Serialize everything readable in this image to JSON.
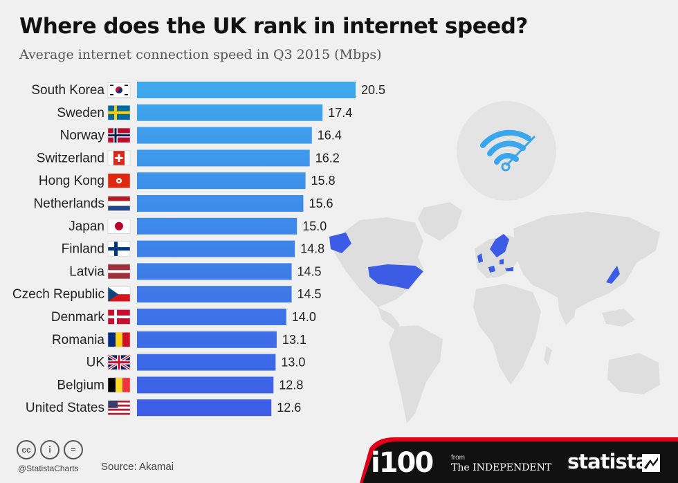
{
  "title": "Where does the UK rank in internet speed?",
  "subtitle": "Average internet connection speed in Q3 2015 (Mbps)",
  "chart_data": {
    "type": "bar",
    "orientation": "horizontal",
    "title": "Where does the UK rank in internet speed?",
    "subtitle": "Average internet connection speed in Q3 2015 (Mbps)",
    "categories": [
      "South Korea",
      "Sweden",
      "Norway",
      "Switzerland",
      "Hong Kong",
      "Netherlands",
      "Japan",
      "Finland",
      "Latvia",
      "Czech Republic",
      "Denmark",
      "Romania",
      "UK",
      "Belgium",
      "United States"
    ],
    "values": [
      20.5,
      17.4,
      16.4,
      16.2,
      15.8,
      15.6,
      15.0,
      14.8,
      14.5,
      14.5,
      14.0,
      13.1,
      13.0,
      12.8,
      12.6
    ],
    "value_labels": [
      "20.5",
      "17.4",
      "16.4",
      "16.2",
      "15.8",
      "15.6",
      "15.0",
      "14.8",
      "14.5",
      "14.5",
      "14.0",
      "13.1",
      "13.0",
      "12.8",
      "12.6"
    ],
    "flags": [
      "south-korea-flag-icon",
      "sweden-flag-icon",
      "norway-flag-icon",
      "switzerland-flag-icon",
      "hong-kong-flag-icon",
      "netherlands-flag-icon",
      "japan-flag-icon",
      "finland-flag-icon",
      "latvia-flag-icon",
      "czech-republic-flag-icon",
      "denmark-flag-icon",
      "romania-flag-icon",
      "uk-flag-icon",
      "belgium-flag-icon",
      "united-states-flag-icon"
    ],
    "xlim": [
      0,
      20.5
    ],
    "grid": false,
    "legend": "none",
    "colors": {
      "bar_top": "#3fa9ec",
      "bar_bottom": "#3d5ce6"
    }
  },
  "decorations": {
    "wifi_icon": "wifi-speedometer-icon",
    "world_map": "world-map",
    "highlight_color": "#3d5ce6",
    "land_color": "#dedede"
  },
  "footer": {
    "license_icons": [
      "cc",
      "i",
      "="
    ],
    "handle": "@StatistaCharts",
    "source": "Source: Akamai",
    "i100": "i100",
    "from": "from",
    "independent": "The INDEPENDENT",
    "statista": "statista",
    "bar_color": "#111111"
  }
}
